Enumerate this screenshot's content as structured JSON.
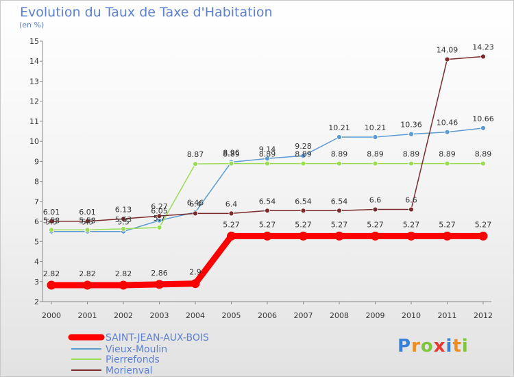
{
  "chart_data": {
    "type": "line",
    "title": "Evolution du Taux de Taxe d'Habitation",
    "subtitle": "(en %)",
    "x": [
      "2000",
      "2001",
      "2002",
      "2003",
      "2004",
      "2005",
      "2006",
      "2007",
      "2008",
      "2009",
      "2010",
      "2011",
      "2012"
    ],
    "ylim": [
      2,
      15
    ],
    "yticks": [
      2,
      3,
      4,
      5,
      6,
      7,
      8,
      9,
      10,
      11,
      12,
      13,
      14,
      15
    ],
    "grid": false,
    "legend": "bottom-left",
    "series": [
      {
        "name": "SAINT-JEAN-AUX-BOIS",
        "color": "#ff0000",
        "values": [
          2.82,
          2.82,
          2.82,
          2.86,
          2.9,
          5.27,
          5.27,
          5.27,
          5.27,
          5.27,
          5.27,
          5.27,
          5.27
        ],
        "labels": [
          "2.82",
          "2.82",
          "2.82",
          "2.86",
          "2.9",
          "5.27",
          "5.27",
          "5.27",
          "5.27",
          "5.27",
          "5.27",
          "5.27",
          "5.27"
        ]
      },
      {
        "name": "Vieux-Moulin",
        "color": "#5b9bd5",
        "values": [
          5.5,
          5.5,
          5.5,
          6.05,
          6.46,
          8.96,
          9.14,
          9.28,
          10.21,
          10.21,
          10.36,
          10.46,
          10.66
        ],
        "labels": [
          "5.5",
          "5.5",
          "5.5",
          "6.05",
          "6.46",
          "8.96",
          "9.14",
          "9.28",
          "10.21",
          "10.21",
          "10.36",
          "10.46",
          "10.66"
        ]
      },
      {
        "name": "Pierrefonds",
        "color": "#99dd55",
        "values": [
          5.58,
          5.58,
          5.63,
          5.7,
          8.87,
          8.89,
          8.89,
          8.89,
          8.89,
          8.89,
          8.89,
          8.89,
          8.89
        ],
        "labels": [
          "5.58",
          "5.58",
          "5.63",
          "5.7",
          "8.87",
          "8.89",
          "8.89",
          "8.89",
          "8.89",
          "8.89",
          "8.89",
          "8.89",
          "8.89"
        ]
      },
      {
        "name": "Morienval",
        "color": "#7a2a2a",
        "values": [
          6.01,
          6.01,
          6.13,
          6.27,
          6.4,
          6.4,
          6.54,
          6.54,
          6.54,
          6.6,
          6.6,
          14.09,
          14.23
        ],
        "labels": [
          "6.01",
          "6.01",
          "6.13",
          "6.27",
          "6.4",
          "6.4",
          "6.54",
          "6.54",
          "6.54",
          "6.6",
          "6.6",
          "14.09",
          "14.23"
        ]
      }
    ]
  },
  "logo": {
    "letters": [
      "P",
      "r",
      "o",
      "x",
      "i",
      "t",
      "i"
    ],
    "colors": [
      "#3a7fd6",
      "#f08c1e",
      "#7fc63a",
      "#e8382f",
      "#3a7fd6",
      "#f08c1e",
      "#7fc63a"
    ]
  }
}
